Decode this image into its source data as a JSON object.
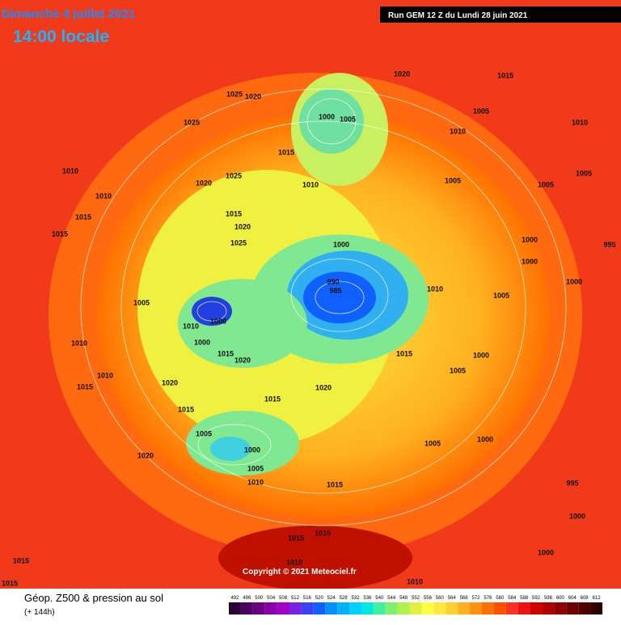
{
  "header": {
    "date": "Dimanche 4 juillet 2021",
    "time": "14:00 locale",
    "run": "Run GEM 12 Z du Lundi 28 juin 2021"
  },
  "legend": {
    "title": "Géop. Z500 & pression au sol",
    "subtitle": "(+ 144h)",
    "scale": [
      492,
      496,
      500,
      504,
      508,
      512,
      516,
      520,
      524,
      528,
      532,
      536,
      540,
      544,
      548,
      552,
      556,
      560,
      564,
      568,
      572,
      576,
      580,
      584,
      588,
      592,
      596,
      600,
      604,
      608,
      612
    ],
    "colors": [
      "#2a0033",
      "#4b0061",
      "#6a0080",
      "#8a00a8",
      "#a000c8",
      "#7a20e0",
      "#4040f0",
      "#1060ff",
      "#0090ff",
      "#00b0ff",
      "#00d0ff",
      "#00e8e0",
      "#40f0a0",
      "#80f070",
      "#b0f050",
      "#e0f040",
      "#ffff40",
      "#ffe840",
      "#ffd030",
      "#ffb020",
      "#ff9010",
      "#ff7000",
      "#ff5000",
      "#ff3020",
      "#f01010",
      "#d00000",
      "#b00000",
      "#900000",
      "#700000",
      "#500000",
      "#300000"
    ]
  },
  "copyright": "Copyright © 2021 Meteociel.fr",
  "isobar_labels": [
    "1020",
    "1015",
    "1025",
    "1020",
    "1000",
    "1005",
    "1005",
    "1010",
    "1025",
    "1010",
    "1015",
    "1010",
    "1025",
    "1010",
    "1005",
    "1020",
    "1005",
    "1005",
    "1010",
    "1015",
    "1020",
    "1015",
    "1015",
    "1025",
    "1000",
    "1000",
    "995",
    "990",
    "985",
    "1000",
    "1010",
    "1005",
    "1000",
    "1005",
    "1010",
    "1000",
    "1000",
    "1010",
    "1015",
    "1020",
    "1015",
    "1000",
    "1010",
    "1005",
    "1020",
    "1015",
    "1020",
    "1015",
    "1015",
    "1005",
    "1000",
    "1005",
    "1000",
    "1020",
    "1005",
    "1010",
    "1015",
    "995",
    "1000",
    "1015",
    "1015",
    "1015",
    "1010",
    "1010",
    "1015",
    "1000"
  ]
}
